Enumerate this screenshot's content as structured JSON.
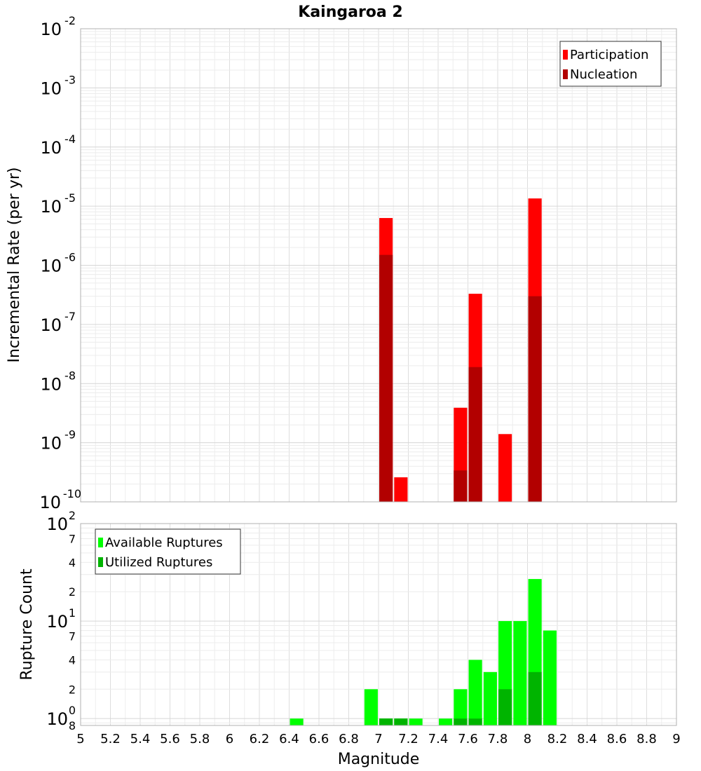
{
  "chart_data": [
    {
      "type": "bar",
      "title": "Kaingaroa 2",
      "xlabel": "",
      "ylabel": "Incremental Rate (per yr)",
      "xlim": [
        5,
        9
      ],
      "ylim": [
        1e-10,
        0.01
      ],
      "yscale": "log",
      "grid": true,
      "legend_position": "top-right",
      "series": [
        {
          "name": "Participation",
          "color": "#ff0000",
          "points": [
            {
              "x": 7.05,
              "y": 6.3e-06
            },
            {
              "x": 7.15,
              "y": 2.6e-10
            },
            {
              "x": 7.55,
              "y": 3.9e-09
            },
            {
              "x": 7.65,
              "y": 3.3e-07
            },
            {
              "x": 7.85,
              "y": 1.4e-09
            },
            {
              "x": 8.05,
              "y": 1.35e-05
            }
          ]
        },
        {
          "name": "Nucleation",
          "color": "#b20000",
          "points": [
            {
              "x": 7.05,
              "y": 1.5e-06
            },
            {
              "x": 7.55,
              "y": 3.4e-10
            },
            {
              "x": 7.65,
              "y": 1.9e-08
            },
            {
              "x": 8.05,
              "y": 3e-07
            }
          ]
        }
      ],
      "yticks": [
        {
          "value": 0.01,
          "base": "10",
          "exp": "-2"
        },
        {
          "value": 0.001,
          "base": "10",
          "exp": "-3"
        },
        {
          "value": 0.0001,
          "base": "10",
          "exp": "-4"
        },
        {
          "value": 1e-05,
          "base": "10",
          "exp": "-5"
        },
        {
          "value": 1e-06,
          "base": "10",
          "exp": "-6"
        },
        {
          "value": 1e-07,
          "base": "10",
          "exp": "-7"
        },
        {
          "value": 1e-08,
          "base": "10",
          "exp": "-8"
        },
        {
          "value": 1e-09,
          "base": "10",
          "exp": "-9"
        },
        {
          "value": 1e-10,
          "base": "10",
          "exp": "-10"
        }
      ]
    },
    {
      "type": "bar",
      "title": "",
      "xlabel": "Magnitude",
      "ylabel": "Rupture Count",
      "xlim": [
        5,
        9
      ],
      "ylim": [
        0.85,
        100
      ],
      "yscale": "log",
      "grid": true,
      "legend_position": "top-left",
      "series": [
        {
          "name": "Available Ruptures",
          "color": "#00ff00",
          "points": [
            {
              "x": 6.45,
              "y": 1
            },
            {
              "x": 6.95,
              "y": 2
            },
            {
              "x": 7.05,
              "y": 1
            },
            {
              "x": 7.15,
              "y": 1
            },
            {
              "x": 7.25,
              "y": 1
            },
            {
              "x": 7.45,
              "y": 1
            },
            {
              "x": 7.55,
              "y": 2
            },
            {
              "x": 7.65,
              "y": 4
            },
            {
              "x": 7.75,
              "y": 3
            },
            {
              "x": 7.85,
              "y": 10
            },
            {
              "x": 7.95,
              "y": 10
            },
            {
              "x": 8.05,
              "y": 27
            },
            {
              "x": 8.15,
              "y": 8
            }
          ]
        },
        {
          "name": "Utilized Ruptures",
          "color": "#00b400",
          "points": [
            {
              "x": 7.05,
              "y": 1
            },
            {
              "x": 7.15,
              "y": 1
            },
            {
              "x": 7.55,
              "y": 1
            },
            {
              "x": 7.65,
              "y": 1
            },
            {
              "x": 7.85,
              "y": 2
            },
            {
              "x": 8.05,
              "y": 3
            }
          ]
        }
      ],
      "yticks": [
        {
          "value": 100,
          "base": "10",
          "exp": "2"
        },
        {
          "value": 10,
          "base": "10",
          "exp": "1"
        },
        {
          "value": 1,
          "base": "10",
          "exp": "0"
        }
      ],
      "minor_yticks": [
        {
          "value": 70,
          "label": "7"
        },
        {
          "value": 40,
          "label": "4"
        },
        {
          "value": 20,
          "label": "2"
        },
        {
          "value": 7,
          "label": "7"
        },
        {
          "value": 4,
          "label": "4"
        },
        {
          "value": 2,
          "label": "2"
        },
        {
          "value": 0.85,
          "label": "8"
        }
      ],
      "xticks": [
        "5",
        "5.2",
        "5.4",
        "5.6",
        "5.8",
        "6",
        "6.2",
        "6.4",
        "6.6",
        "6.8",
        "7",
        "7.2",
        "7.4",
        "7.6",
        "7.8",
        "8",
        "8.2",
        "8.4",
        "8.6",
        "8.8",
        "9"
      ]
    }
  ]
}
